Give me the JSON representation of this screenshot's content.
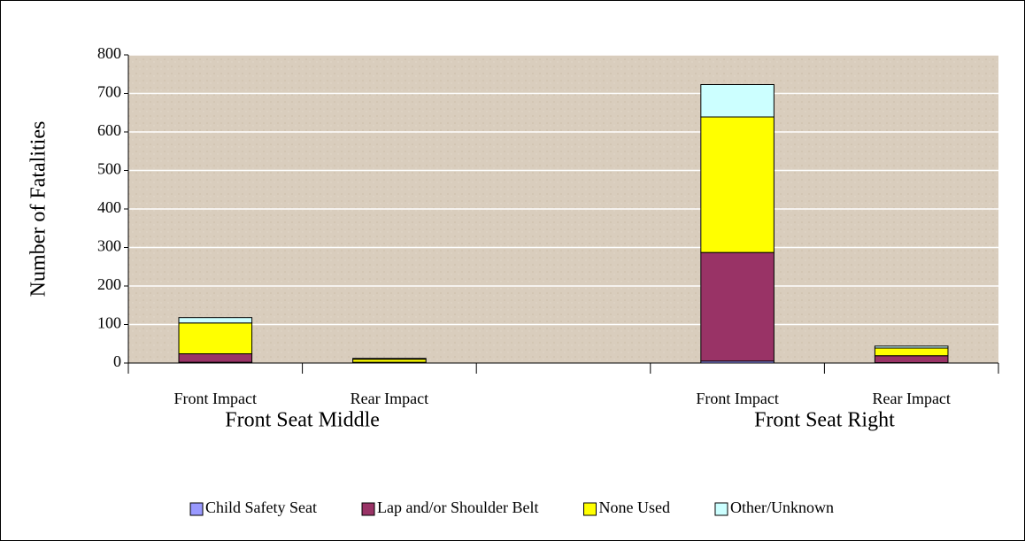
{
  "chart_data": {
    "type": "stacked_bar",
    "ylabel": "Number of Fatalities",
    "categories": [
      "Front Impact",
      "Rear Impact",
      null,
      "Front Impact",
      "Rear Impact"
    ],
    "groups": [
      "Front Seat Middle",
      "Front Seat Right"
    ],
    "series": [
      {
        "name": "Child Safety Seat",
        "color": "#9999ff",
        "values": [
          2,
          0,
          null,
          5,
          1
        ]
      },
      {
        "name": "Lap and/or Shoulder Belt",
        "color": "#993366",
        "values": [
          22,
          2,
          null,
          282,
          18
        ]
      },
      {
        "name": "None Used",
        "color": "#ffff00",
        "values": [
          80,
          8,
          null,
          352,
          20
        ]
      },
      {
        "name": "Other/Unknown",
        "color": "#ccffff",
        "values": [
          14,
          2,
          null,
          84,
          5
        ]
      }
    ],
    "ylim": [
      0,
      800
    ],
    "yticks": [
      0,
      100,
      200,
      300,
      400,
      500,
      600,
      700,
      800
    ],
    "grid": true,
    "legend": "bottom"
  }
}
